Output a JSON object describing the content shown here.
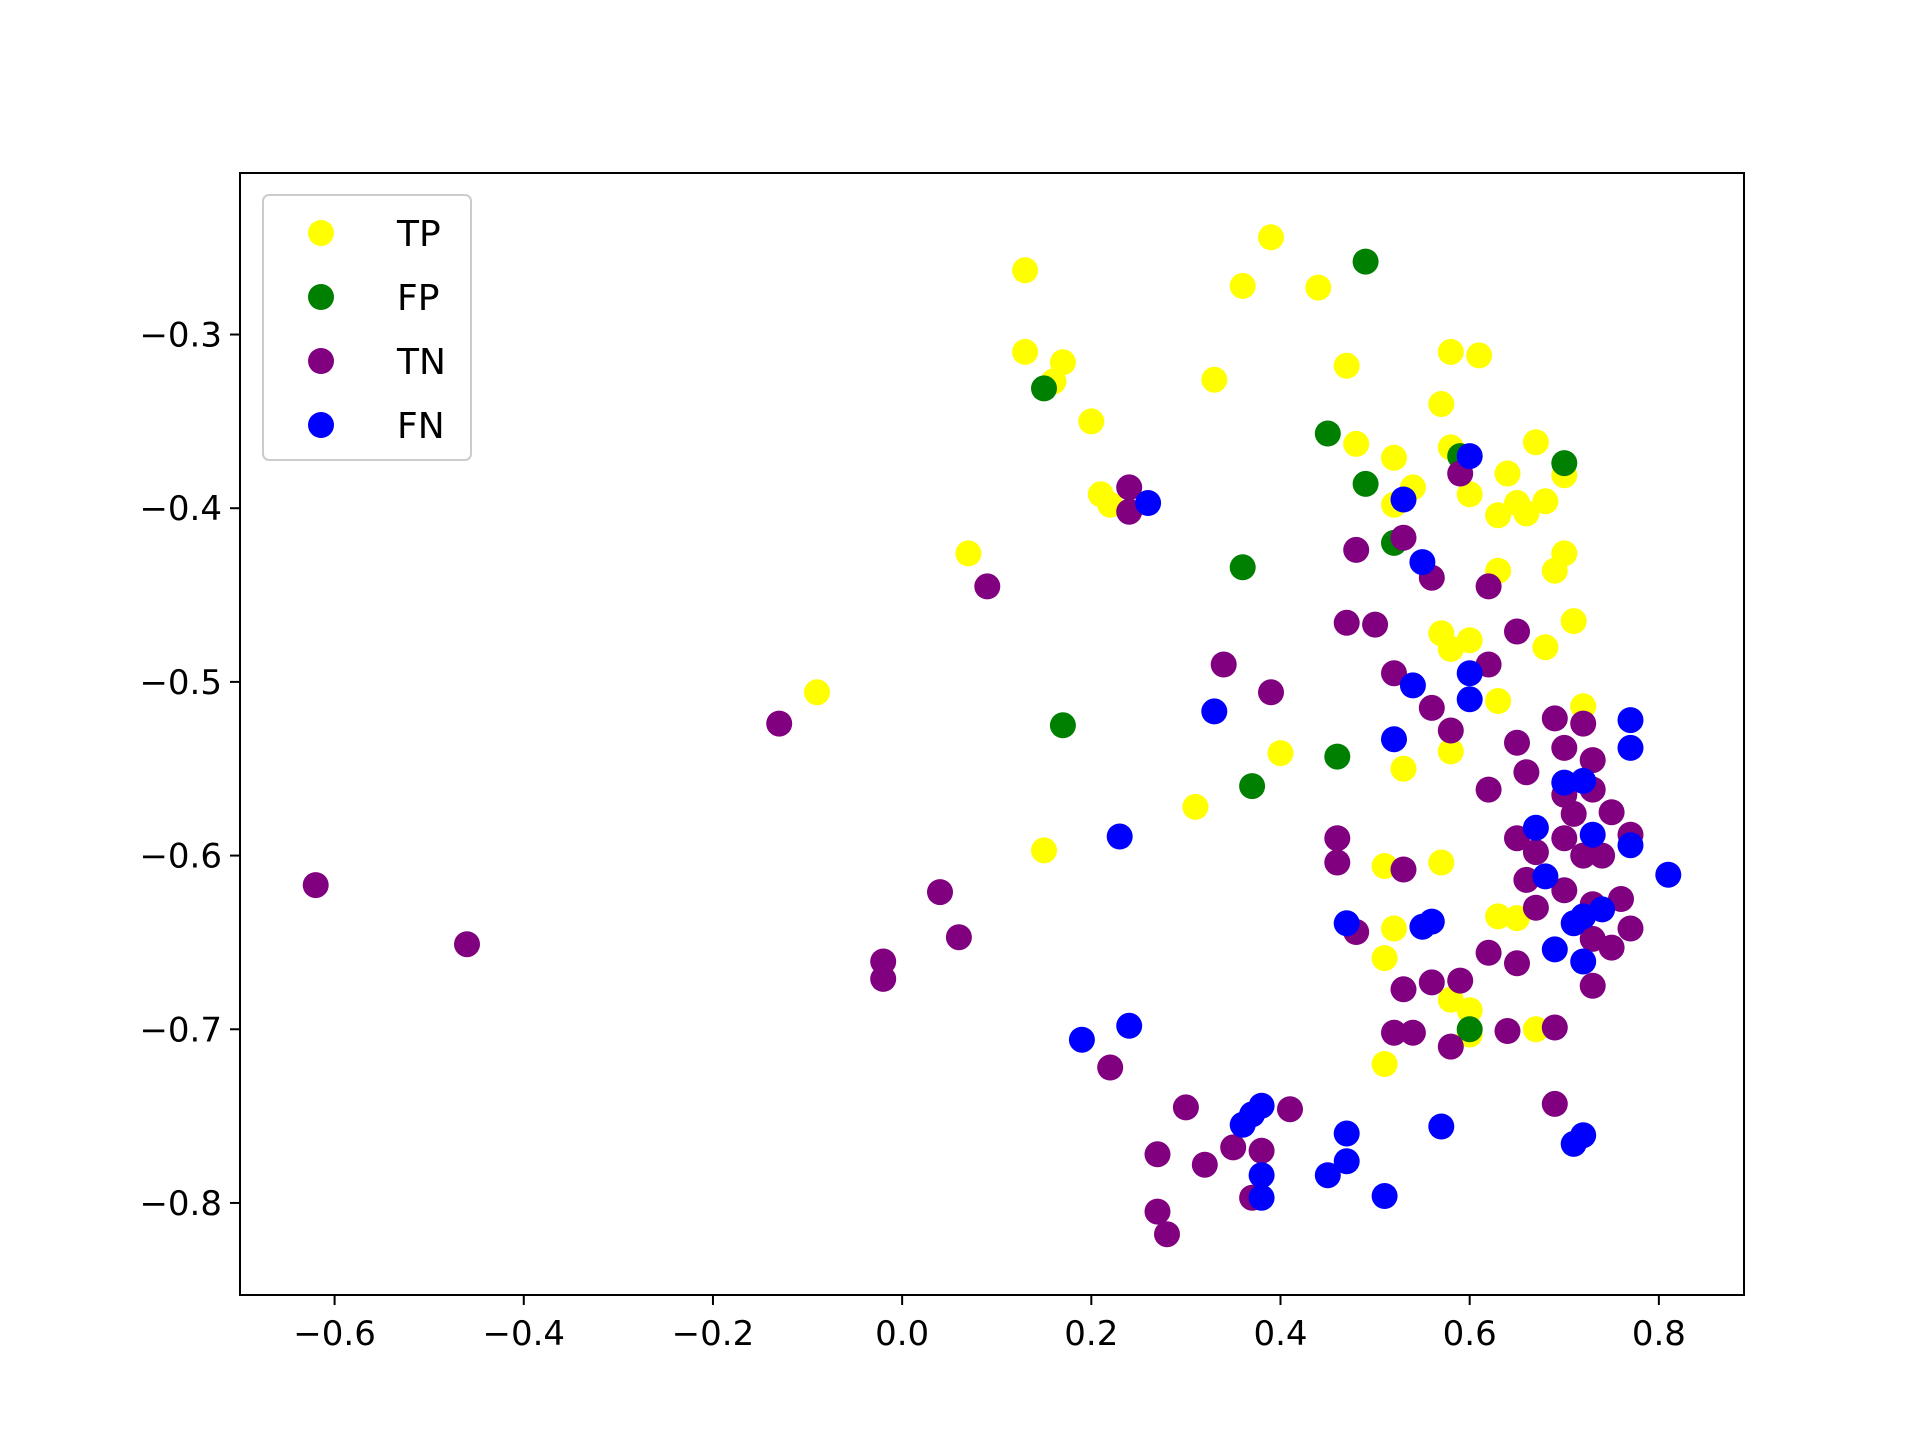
{
  "chart_data": {
    "type": "scatter",
    "title": "",
    "xlabel": "",
    "ylabel": "",
    "xlim": [
      -0.7,
      0.89
    ],
    "ylim": [
      -0.853,
      -0.207
    ],
    "xticks": [
      -0.6,
      -0.4,
      -0.2,
      0.0,
      0.2,
      0.4,
      0.6,
      0.8
    ],
    "xtick_labels": [
      "−0.6",
      "−0.4",
      "−0.2",
      "0.0",
      "0.2",
      "0.4",
      "0.6",
      "0.8"
    ],
    "yticks": [
      -0.3,
      -0.4,
      -0.5,
      -0.6,
      -0.7,
      -0.8
    ],
    "ytick_labels": [
      "−0.3",
      "−0.4",
      "−0.5",
      "−0.6",
      "−0.7",
      "−0.8"
    ],
    "grid": false,
    "legend_position": "top-left",
    "series": [
      {
        "name": "TP",
        "color": "#ffff00",
        "points": [
          [
            0.13,
            -0.263
          ],
          [
            0.39,
            -0.244
          ],
          [
            0.36,
            -0.272
          ],
          [
            0.44,
            -0.273
          ],
          [
            0.13,
            -0.31
          ],
          [
            0.17,
            -0.316
          ],
          [
            0.16,
            -0.327
          ],
          [
            0.33,
            -0.326
          ],
          [
            0.47,
            -0.318
          ],
          [
            0.58,
            -0.31
          ],
          [
            0.61,
            -0.312
          ],
          [
            0.2,
            -0.35
          ],
          [
            0.48,
            -0.363
          ],
          [
            0.52,
            -0.371
          ],
          [
            0.57,
            -0.34
          ],
          [
            0.58,
            -0.365
          ],
          [
            0.67,
            -0.362
          ],
          [
            0.64,
            -0.38
          ],
          [
            0.7,
            -0.381
          ],
          [
            0.21,
            -0.392
          ],
          [
            0.22,
            -0.398
          ],
          [
            0.52,
            -0.398
          ],
          [
            0.54,
            -0.388
          ],
          [
            0.6,
            -0.392
          ],
          [
            0.63,
            -0.404
          ],
          [
            0.65,
            -0.397
          ],
          [
            0.66,
            -0.403
          ],
          [
            0.68,
            -0.396
          ],
          [
            0.07,
            -0.426
          ],
          [
            0.63,
            -0.436
          ],
          [
            0.69,
            -0.436
          ],
          [
            0.7,
            -0.426
          ],
          [
            0.57,
            -0.472
          ],
          [
            0.58,
            -0.481
          ],
          [
            0.6,
            -0.476
          ],
          [
            0.68,
            -0.48
          ],
          [
            0.71,
            -0.465
          ],
          [
            -0.09,
            -0.506
          ],
          [
            0.63,
            -0.511
          ],
          [
            0.72,
            -0.514
          ],
          [
            0.4,
            -0.541
          ],
          [
            0.53,
            -0.55
          ],
          [
            0.58,
            -0.54
          ],
          [
            0.31,
            -0.572
          ],
          [
            0.15,
            -0.597
          ],
          [
            0.51,
            -0.606
          ],
          [
            0.57,
            -0.604
          ],
          [
            0.52,
            -0.642
          ],
          [
            0.63,
            -0.635
          ],
          [
            0.65,
            -0.636
          ],
          [
            0.51,
            -0.659
          ],
          [
            0.58,
            -0.683
          ],
          [
            0.6,
            -0.689
          ],
          [
            0.6,
            -0.703
          ],
          [
            0.67,
            -0.7
          ],
          [
            0.51,
            -0.72
          ]
        ]
      },
      {
        "name": "FP",
        "color": "#008000",
        "points": [
          [
            0.49,
            -0.258
          ],
          [
            0.15,
            -0.331
          ],
          [
            0.45,
            -0.357
          ],
          [
            0.49,
            -0.386
          ],
          [
            0.59,
            -0.37
          ],
          [
            0.7,
            -0.374
          ],
          [
            0.52,
            -0.42
          ],
          [
            0.36,
            -0.434
          ],
          [
            0.17,
            -0.525
          ],
          [
            0.46,
            -0.543
          ],
          [
            0.37,
            -0.56
          ],
          [
            0.6,
            -0.7
          ]
        ]
      },
      {
        "name": "TN",
        "color": "#800080",
        "points": [
          [
            0.24,
            -0.388
          ],
          [
            0.24,
            -0.402
          ],
          [
            0.59,
            -0.38
          ],
          [
            0.48,
            -0.424
          ],
          [
            0.53,
            -0.417
          ],
          [
            0.56,
            -0.44
          ],
          [
            0.09,
            -0.445
          ],
          [
            0.62,
            -0.445
          ],
          [
            0.47,
            -0.466
          ],
          [
            0.5,
            -0.467
          ],
          [
            0.65,
            -0.471
          ],
          [
            0.34,
            -0.49
          ],
          [
            0.52,
            -0.495
          ],
          [
            0.62,
            -0.49
          ],
          [
            0.39,
            -0.506
          ],
          [
            -0.13,
            -0.524
          ],
          [
            0.56,
            -0.515
          ],
          [
            0.58,
            -0.528
          ],
          [
            0.65,
            -0.535
          ],
          [
            0.69,
            -0.521
          ],
          [
            0.72,
            -0.524
          ],
          [
            0.7,
            -0.538
          ],
          [
            0.73,
            -0.545
          ],
          [
            0.62,
            -0.562
          ],
          [
            0.66,
            -0.552
          ],
          [
            0.7,
            -0.565
          ],
          [
            0.71,
            -0.576
          ],
          [
            0.73,
            -0.562
          ],
          [
            0.75,
            -0.575
          ],
          [
            0.46,
            -0.59
          ],
          [
            0.46,
            -0.604
          ],
          [
            0.65,
            -0.59
          ],
          [
            0.67,
            -0.598
          ],
          [
            0.7,
            -0.59
          ],
          [
            0.72,
            -0.6
          ],
          [
            0.74,
            -0.6
          ],
          [
            0.77,
            -0.588
          ],
          [
            0.53,
            -0.608
          ],
          [
            0.66,
            -0.614
          ],
          [
            0.67,
            -0.63
          ],
          [
            0.7,
            -0.62
          ],
          [
            0.73,
            -0.628
          ],
          [
            0.76,
            -0.625
          ],
          [
            -0.62,
            -0.617
          ],
          [
            0.04,
            -0.621
          ],
          [
            -0.46,
            -0.651
          ],
          [
            0.06,
            -0.647
          ],
          [
            0.48,
            -0.644
          ],
          [
            0.62,
            -0.656
          ],
          [
            0.65,
            -0.662
          ],
          [
            0.73,
            -0.648
          ],
          [
            0.75,
            -0.653
          ],
          [
            0.77,
            -0.642
          ],
          [
            -0.02,
            -0.661
          ],
          [
            -0.02,
            -0.671
          ],
          [
            0.53,
            -0.677
          ],
          [
            0.56,
            -0.673
          ],
          [
            0.59,
            -0.672
          ],
          [
            0.73,
            -0.675
          ],
          [
            0.52,
            -0.702
          ],
          [
            0.54,
            -0.702
          ],
          [
            0.58,
            -0.71
          ],
          [
            0.64,
            -0.701
          ],
          [
            0.69,
            -0.699
          ],
          [
            0.22,
            -0.722
          ],
          [
            0.3,
            -0.745
          ],
          [
            0.41,
            -0.746
          ],
          [
            0.69,
            -0.743
          ],
          [
            0.27,
            -0.772
          ],
          [
            0.32,
            -0.778
          ],
          [
            0.35,
            -0.768
          ],
          [
            0.38,
            -0.77
          ],
          [
            0.27,
            -0.805
          ],
          [
            0.28,
            -0.818
          ],
          [
            0.37,
            -0.797
          ]
        ]
      },
      {
        "name": "FN",
        "color": "#0000ff",
        "points": [
          [
            0.6,
            -0.37
          ],
          [
            0.26,
            -0.397
          ],
          [
            0.53,
            -0.395
          ],
          [
            0.55,
            -0.431
          ],
          [
            0.54,
            -0.502
          ],
          [
            0.6,
            -0.495
          ],
          [
            0.6,
            -0.51
          ],
          [
            0.33,
            -0.517
          ],
          [
            0.52,
            -0.533
          ],
          [
            0.77,
            -0.522
          ],
          [
            0.77,
            -0.538
          ],
          [
            0.7,
            -0.558
          ],
          [
            0.72,
            -0.557
          ],
          [
            0.67,
            -0.584
          ],
          [
            0.73,
            -0.588
          ],
          [
            0.77,
            -0.594
          ],
          [
            0.23,
            -0.589
          ],
          [
            0.81,
            -0.611
          ],
          [
            0.68,
            -0.612
          ],
          [
            0.47,
            -0.639
          ],
          [
            0.55,
            -0.641
          ],
          [
            0.56,
            -0.638
          ],
          [
            0.71,
            -0.639
          ],
          [
            0.72,
            -0.635
          ],
          [
            0.74,
            -0.631
          ],
          [
            0.69,
            -0.654
          ],
          [
            0.72,
            -0.661
          ],
          [
            0.19,
            -0.706
          ],
          [
            0.24,
            -0.698
          ],
          [
            0.36,
            -0.755
          ],
          [
            0.37,
            -0.749
          ],
          [
            0.38,
            -0.744
          ],
          [
            0.47,
            -0.76
          ],
          [
            0.57,
            -0.756
          ],
          [
            0.71,
            -0.766
          ],
          [
            0.72,
            -0.761
          ],
          [
            0.38,
            -0.784
          ],
          [
            0.38,
            -0.797
          ],
          [
            0.45,
            -0.784
          ],
          [
            0.47,
            -0.776
          ],
          [
            0.51,
            -0.796
          ]
        ]
      }
    ]
  }
}
